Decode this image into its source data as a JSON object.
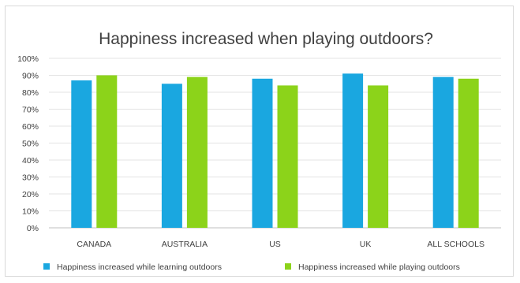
{
  "chart_data": {
    "type": "bar",
    "title": "Happiness increased when playing outdoors?",
    "categories": [
      "CANADA",
      "AUSTRALIA",
      "US",
      "UK",
      "ALL SCHOOLS"
    ],
    "series": [
      {
        "name": "Happiness increased while learning outdoors",
        "color": "#1aa7e0",
        "values": [
          87,
          85,
          88,
          91,
          89
        ]
      },
      {
        "name": "Happiness increased while playing outdoors",
        "color": "#8cd31a",
        "values": [
          90,
          89,
          84,
          84,
          88
        ]
      }
    ],
    "yticks": [
      "0%",
      "10%",
      "20%",
      "30%",
      "40%",
      "50%",
      "60%",
      "70%",
      "80%",
      "90%",
      "100%"
    ],
    "ylim": [
      0,
      100
    ],
    "grid": true,
    "legend_position": "bottom"
  }
}
